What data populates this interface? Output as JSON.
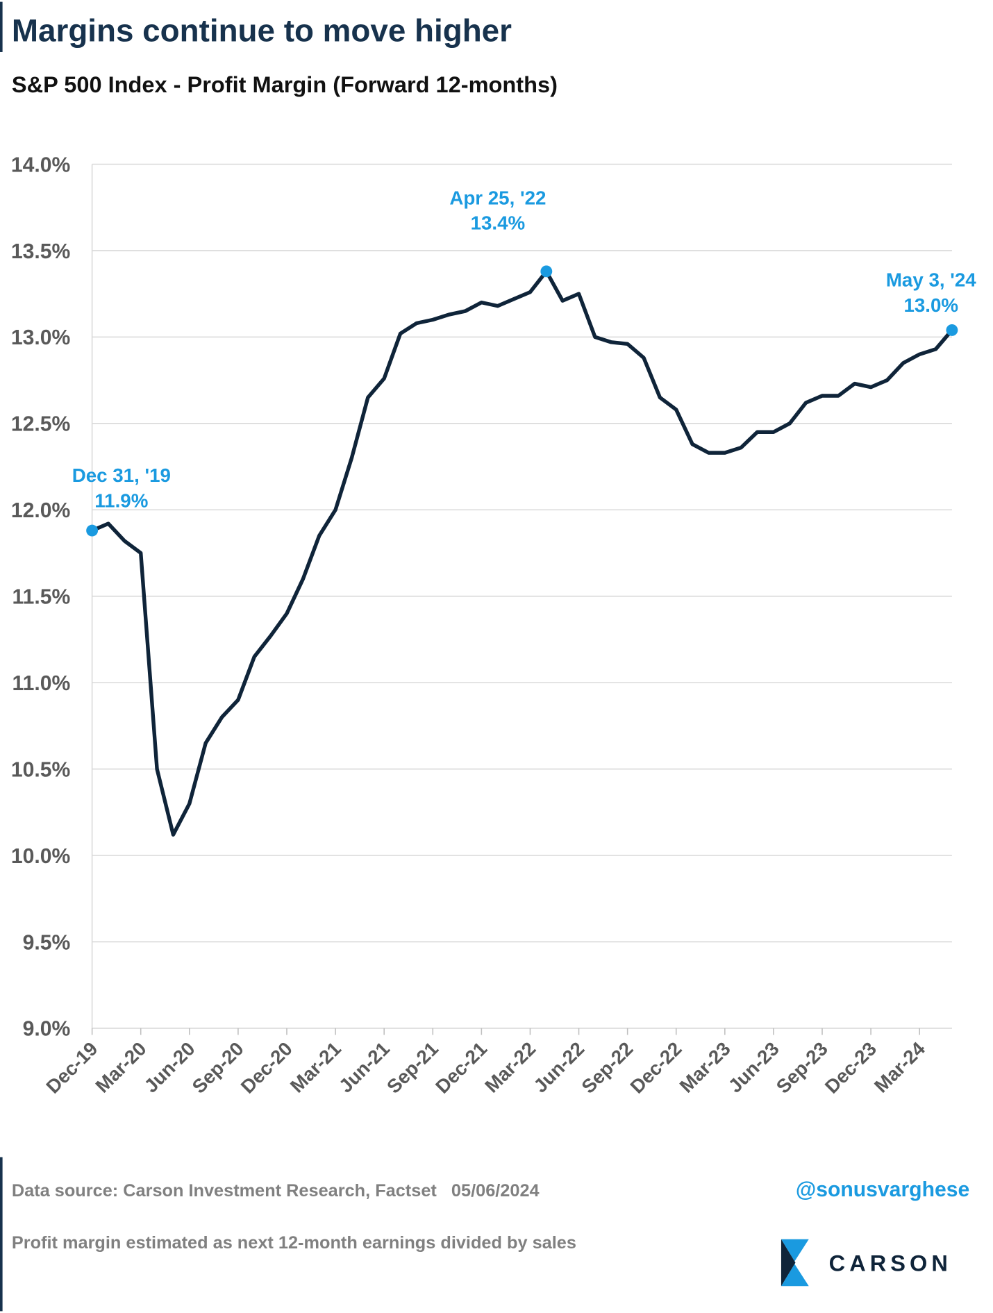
{
  "chart_data": {
    "type": "line",
    "title": "Margins continue to move higher",
    "subtitle": "S&P 500 Index - Profit Margin (Forward 12-months)",
    "categories": [
      "Dec-19",
      null,
      null,
      "Mar-20",
      null,
      null,
      "Jun-20",
      null,
      null,
      "Sep-20",
      null,
      null,
      "Dec-20",
      null,
      null,
      "Mar-21",
      null,
      null,
      "Jun-21",
      null,
      null,
      "Sep-21",
      null,
      null,
      "Dec-21",
      null,
      null,
      "Mar-22",
      null,
      null,
      "Jun-22",
      null,
      null,
      "Sep-22",
      null,
      null,
      "Dec-22",
      null,
      null,
      "Mar-23",
      null,
      null,
      "Jun-23",
      null,
      null,
      "Sep-23",
      null,
      null,
      "Dec-23",
      null,
      null,
      "Mar-24",
      null,
      null
    ],
    "series": [
      {
        "name": "S&P 500 Profit Margin",
        "color": "#0f2439",
        "values": [
          11.88,
          11.92,
          11.82,
          11.75,
          10.5,
          10.12,
          10.3,
          10.65,
          10.8,
          10.9,
          11.15,
          11.27,
          11.4,
          11.6,
          11.85,
          12.0,
          12.3,
          12.65,
          12.76,
          13.02,
          13.08,
          13.1,
          13.13,
          13.15,
          13.2,
          13.18,
          13.22,
          13.26,
          13.38,
          13.21,
          13.25,
          13.0,
          12.97,
          12.96,
          12.88,
          12.65,
          12.58,
          12.38,
          12.33,
          12.33,
          12.36,
          12.45,
          12.45,
          12.5,
          12.62,
          12.66,
          12.66,
          12.73,
          12.71,
          12.75,
          12.85,
          12.9,
          12.93,
          13.04
        ]
      }
    ],
    "ylim": [
      9,
      14
    ],
    "yticks": [
      {
        "value": 9,
        "label": "9.0%"
      },
      {
        "value": 9.5,
        "label": "9.5%"
      },
      {
        "value": 10,
        "label": "10.0%"
      },
      {
        "value": 10.5,
        "label": "10.5%"
      },
      {
        "value": 11,
        "label": "11.0%"
      },
      {
        "value": 11.5,
        "label": "11.5%"
      },
      {
        "value": 12,
        "label": "12.0%"
      },
      {
        "value": 12.5,
        "label": "12.5%"
      },
      {
        "value": 13,
        "label": "13.0%"
      },
      {
        "value": 13.5,
        "label": "13.5%"
      },
      {
        "value": 14,
        "label": "14.0%"
      }
    ],
    "grid": true,
    "annotations": [
      {
        "text": "Dec 31, '19",
        "value": 11.88,
        "value_label": "11.9%",
        "color": "#1a9ae0"
      },
      {
        "text": "Apr 25, '22",
        "value": 13.38,
        "value_label": "13.4%",
        "color": "#1a9ae0"
      },
      {
        "text": "May 3, '24",
        "value": 13.04,
        "value_label": "13.0%",
        "color": "#1a9ae0"
      }
    ],
    "source": "Data source: Carson Investment Research, Factset   05/06/2024",
    "note": "Profit margin estimated as next 12-month earnings divided by sales",
    "handle": "@sonusvarghese",
    "brand": "CARSON"
  }
}
